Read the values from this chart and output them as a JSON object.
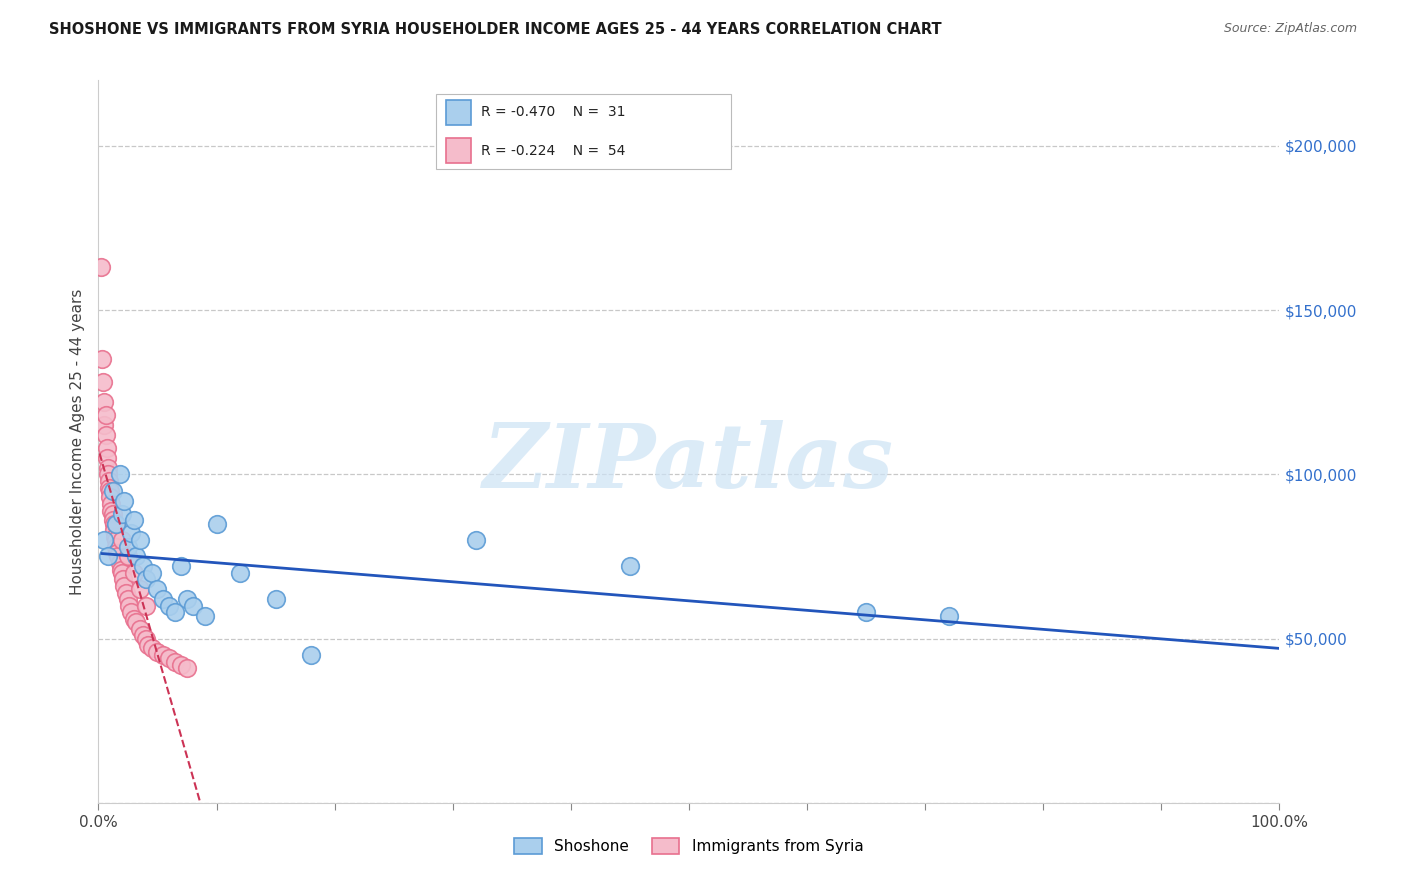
{
  "title": "SHOSHONE VS IMMIGRANTS FROM SYRIA HOUSEHOLDER INCOME AGES 25 - 44 YEARS CORRELATION CHART",
  "source": "Source: ZipAtlas.com",
  "ylabel": "Householder Income Ages 25 - 44 years",
  "xlim": [
    0,
    1.0
  ],
  "ylim": [
    0,
    220000
  ],
  "xticks": [
    0.0,
    0.1,
    0.2,
    0.3,
    0.4,
    0.5,
    0.6,
    0.7,
    0.8,
    0.9,
    1.0
  ],
  "ytick_positions": [
    0,
    50000,
    100000,
    150000,
    200000
  ],
  "ytick_labels": [
    "",
    "$50,000",
    "$100,000",
    "$150,000",
    "$200,000"
  ],
  "background_color": "#ffffff",
  "grid_color": "#c8c8c8",
  "watermark_text": "ZIPatlas",
  "legend_R1": "-0.470",
  "legend_N1": "31",
  "legend_R2": "-0.224",
  "legend_N2": "54",
  "series1_color": "#aacfed",
  "series1_edge_color": "#5b9bd5",
  "series2_color": "#f5bccb",
  "series2_edge_color": "#e8708e",
  "trendline1_color": "#2255bb",
  "trendline2_color": "#cc3355",
  "shoshone_x": [
    0.005,
    0.008,
    0.012,
    0.015,
    0.018,
    0.02,
    0.022,
    0.025,
    0.028,
    0.03,
    0.032,
    0.035,
    0.038,
    0.04,
    0.045,
    0.05,
    0.055,
    0.06,
    0.065,
    0.07,
    0.075,
    0.08,
    0.09,
    0.1,
    0.12,
    0.15,
    0.18,
    0.32,
    0.45,
    0.65,
    0.72
  ],
  "shoshone_y": [
    80000,
    75000,
    95000,
    85000,
    100000,
    88000,
    92000,
    78000,
    82000,
    86000,
    75000,
    80000,
    72000,
    68000,
    70000,
    65000,
    62000,
    60000,
    58000,
    72000,
    62000,
    60000,
    57000,
    85000,
    70000,
    62000,
    45000,
    80000,
    72000,
    58000,
    57000
  ],
  "syria_x": [
    0.002,
    0.003,
    0.004,
    0.005,
    0.005,
    0.006,
    0.006,
    0.007,
    0.007,
    0.008,
    0.008,
    0.009,
    0.009,
    0.01,
    0.01,
    0.011,
    0.011,
    0.012,
    0.012,
    0.013,
    0.013,
    0.014,
    0.015,
    0.015,
    0.016,
    0.017,
    0.018,
    0.019,
    0.02,
    0.021,
    0.022,
    0.023,
    0.025,
    0.026,
    0.028,
    0.03,
    0.032,
    0.035,
    0.038,
    0.04,
    0.042,
    0.045,
    0.05,
    0.055,
    0.06,
    0.065,
    0.07,
    0.075,
    0.015,
    0.02,
    0.025,
    0.03,
    0.035,
    0.04
  ],
  "syria_y": [
    163000,
    135000,
    128000,
    122000,
    115000,
    118000,
    112000,
    108000,
    105000,
    102000,
    100000,
    98000,
    96000,
    95000,
    93000,
    91000,
    89000,
    88000,
    86000,
    85000,
    83000,
    81000,
    80000,
    78000,
    76000,
    75000,
    73000,
    71000,
    70000,
    68000,
    66000,
    64000,
    62000,
    60000,
    58000,
    56000,
    55000,
    53000,
    51000,
    50000,
    48000,
    47000,
    46000,
    45000,
    44000,
    43000,
    42000,
    41000,
    85000,
    80000,
    75000,
    70000,
    65000,
    60000
  ]
}
